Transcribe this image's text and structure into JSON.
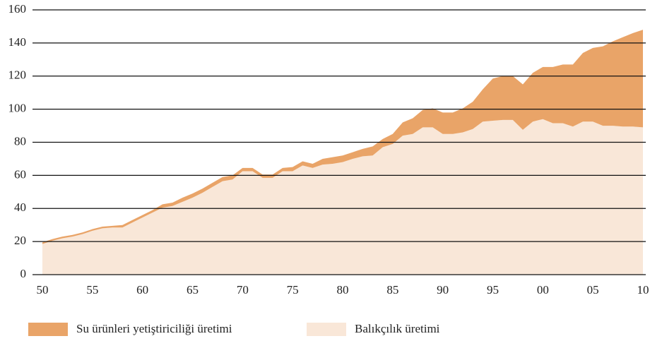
{
  "chart_data": {
    "type": "stacked-area",
    "x": [
      1950,
      1951,
      1952,
      1953,
      1954,
      1955,
      1956,
      1957,
      1958,
      1959,
      1960,
      1961,
      1962,
      1963,
      1964,
      1965,
      1966,
      1967,
      1968,
      1969,
      1970,
      1971,
      1972,
      1973,
      1974,
      1975,
      1976,
      1977,
      1978,
      1979,
      1980,
      1981,
      1982,
      1983,
      1984,
      1985,
      1986,
      1987,
      1988,
      1989,
      1990,
      1991,
      1992,
      1993,
      1994,
      1995,
      1996,
      1997,
      1998,
      1999,
      2000,
      2001,
      2002,
      2003,
      2004,
      2005,
      2006,
      2007,
      2008,
      2009,
      2010
    ],
    "series": [
      {
        "name": "Balıkçılık üretimi",
        "color": "#f9e7d8",
        "values": [
          18.5,
          20.5,
          22,
          23,
          24.5,
          26.5,
          28,
          28.5,
          28.5,
          31.5,
          34.5,
          37.5,
          40.5,
          41.5,
          44,
          46.5,
          49.5,
          53,
          56.5,
          57.5,
          62.5,
          62.5,
          58.5,
          58.5,
          62.5,
          62.5,
          66,
          64.5,
          66.5,
          67,
          68,
          70,
          71.5,
          72,
          77,
          79,
          84,
          85,
          89,
          89,
          85,
          85,
          86,
          88,
          92.5,
          93,
          93.5,
          93.5,
          87.5,
          92.5,
          94,
          91.5,
          91.5,
          89.5,
          92.5,
          92.5,
          90,
          90,
          89.5,
          89.5,
          89
        ]
      },
      {
        "name": "Su ürünleri yetiştiriciliği üretimi",
        "color": "#e9a468",
        "values": [
          1,
          1,
          1,
          1,
          1,
          1,
          1,
          1,
          1.5,
          1.5,
          1.5,
          1.5,
          2,
          2,
          2.5,
          2.5,
          2.5,
          2.5,
          2.5,
          2.5,
          2,
          2,
          2,
          2,
          2,
          2.5,
          2.5,
          2.5,
          3.5,
          4,
          4,
          4,
          4.5,
          5.5,
          5,
          6,
          8,
          9.5,
          10.5,
          11.5,
          13,
          13,
          14.5,
          16.5,
          19.5,
          25.5,
          26.5,
          26.5,
          27.5,
          29.5,
          31.5,
          34,
          35.5,
          37.5,
          41.5,
          44.5,
          48,
          51,
          54,
          56.5,
          59
        ]
      }
    ],
    "xlim": [
      1950,
      2010
    ],
    "xticks": [
      {
        "value": 1950,
        "label": "50"
      },
      {
        "value": 1955,
        "label": "55"
      },
      {
        "value": 1960,
        "label": "60"
      },
      {
        "value": 1965,
        "label": "65"
      },
      {
        "value": 1970,
        "label": "70"
      },
      {
        "value": 1975,
        "label": "75"
      },
      {
        "value": 1980,
        "label": "80"
      },
      {
        "value": 1985,
        "label": "85"
      },
      {
        "value": 1990,
        "label": "90"
      },
      {
        "value": 1995,
        "label": "95"
      },
      {
        "value": 2000,
        "label": "00"
      },
      {
        "value": 2005,
        "label": "05"
      },
      {
        "value": 2010,
        "label": "10"
      }
    ],
    "ylim": [
      0,
      160
    ],
    "yticks": [
      0,
      20,
      40,
      60,
      80,
      100,
      120,
      140,
      160
    ],
    "grid": true
  }
}
